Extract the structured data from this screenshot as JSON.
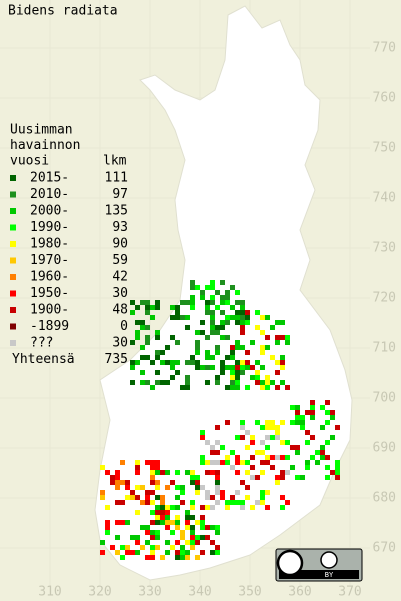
{
  "title": "Bidens radiata",
  "legend": {
    "header": [
      "Uusimman",
      "havainnon",
      "vuosi"
    ],
    "count_header": "lkm",
    "rows": [
      {
        "label": "2015-",
        "count": 111,
        "color": "#006400"
      },
      {
        "label": "2010-",
        "count": 97,
        "color": "#1e901e"
      },
      {
        "label": "2000-",
        "count": 135,
        "color": "#00c800"
      },
      {
        "label": "1990-",
        "count": 93,
        "color": "#00ff00"
      },
      {
        "label": "1980-",
        "count": 90,
        "color": "#ffff00"
      },
      {
        "label": "1970-",
        "count": 59,
        "color": "#ffc800"
      },
      {
        "label": "1960-",
        "count": 42,
        "color": "#ff8000"
      },
      {
        "label": "1950-",
        "count": 30,
        "color": "#ff0000"
      },
      {
        "label": "1900-",
        "count": 48,
        "color": "#c80000"
      },
      {
        "label": "-1899",
        "count": 0,
        "color": "#800000"
      },
      {
        "label": "???",
        "count": 30,
        "color": "#c8c8c8"
      }
    ],
    "total_label": "Yhteensä",
    "total": 735
  },
  "x_ticks": [
    310,
    320,
    330,
    340,
    350,
    360,
    370
  ],
  "y_ticks": [
    770,
    760,
    750,
    740,
    730,
    720,
    710,
    700,
    690,
    680,
    670
  ],
  "license": "BY"
}
